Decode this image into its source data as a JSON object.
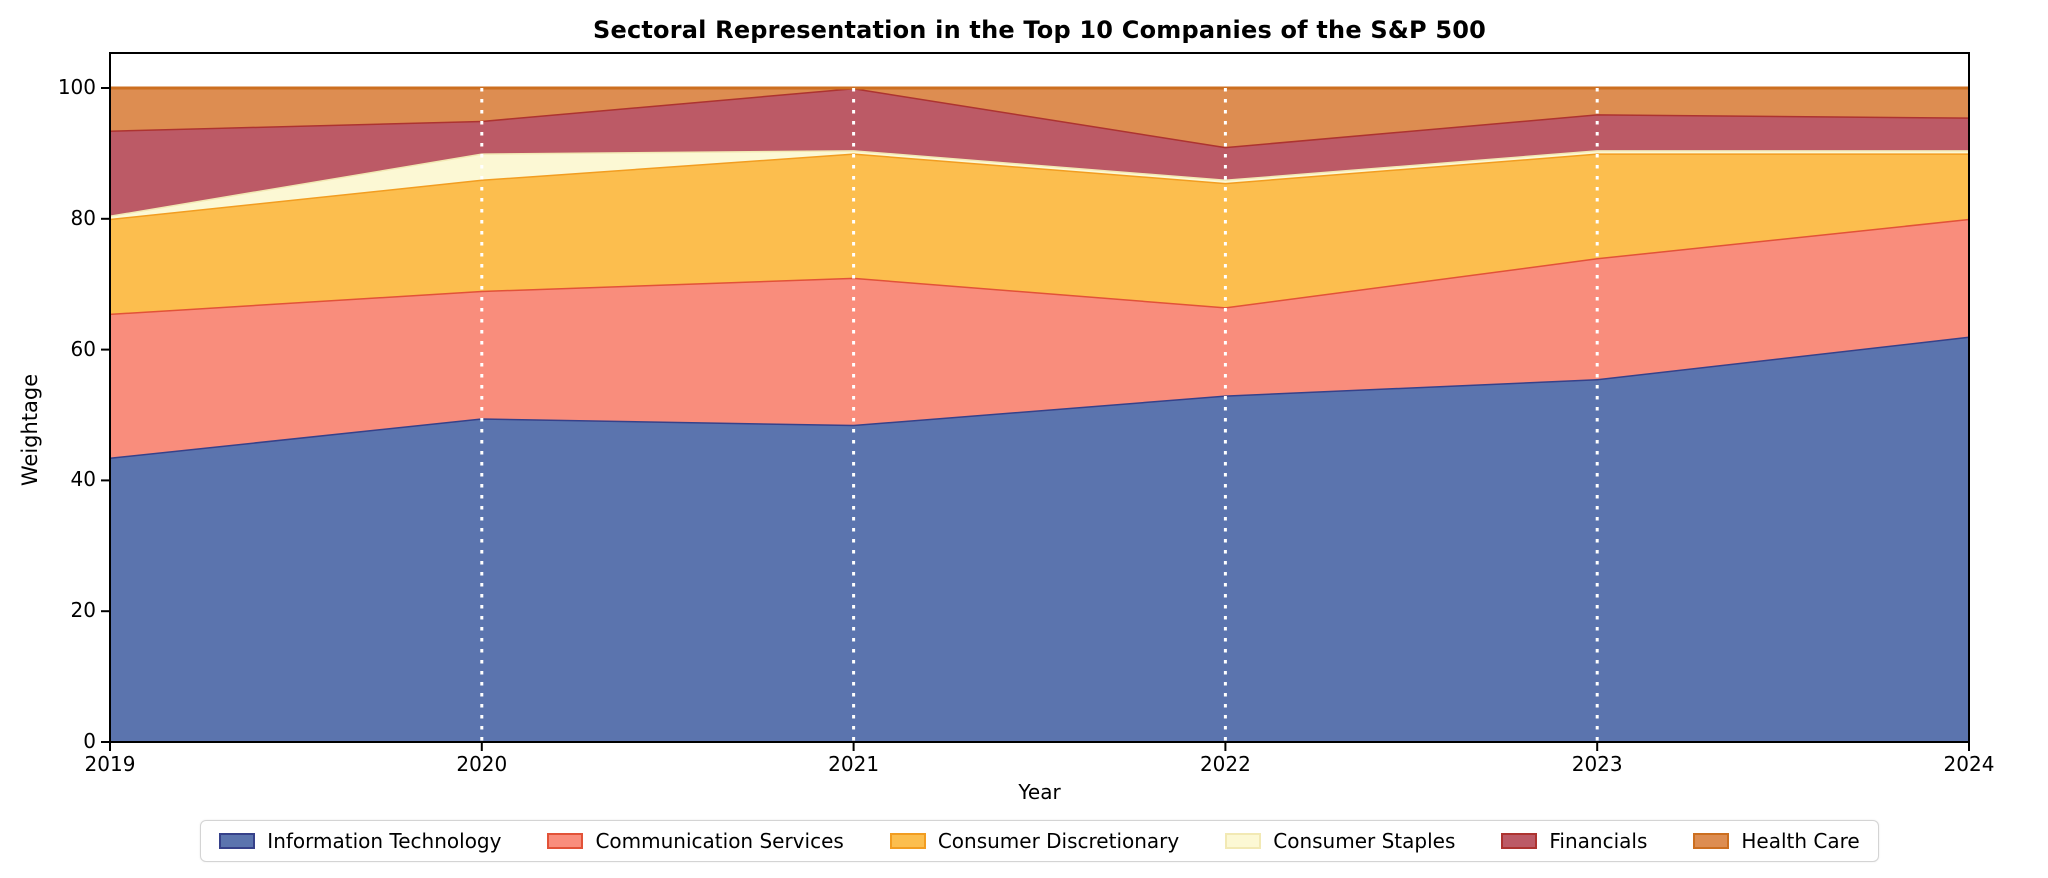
{
  "figure": {
    "title": "Sectoral Representation in the Top 10 Companies of the S&P 500",
    "background_color": "#ffffff",
    "axis_color": "#000000"
  },
  "chart_data": {
    "type": "area",
    "stacked": true,
    "title": "Sectoral Representation in the Top 10 Companies of the S&P 500",
    "xlabel": "Year",
    "ylabel": "Weightage",
    "x": [
      2019,
      2020,
      2021,
      2022,
      2023,
      2024
    ],
    "xtick_labels": [
      "2019",
      "2020",
      "2021",
      "2022",
      "2023",
      "2024"
    ],
    "yticks": [
      0,
      20,
      40,
      60,
      80,
      100
    ],
    "ylim": [
      0,
      100
    ],
    "xlim": [
      2019,
      2024
    ],
    "grid": "white dotted vertical lines at interior years, drawn over the areas from y=100 down to y=0",
    "vline_years": [
      2020,
      2021,
      2022,
      2023
    ],
    "vline_color": "#ffffff",
    "legend_position": "bottom center, horizontal, boxed",
    "series": [
      {
        "name": "Information Technology",
        "values": [
          43.5,
          49.5,
          48.5,
          53.0,
          55.5,
          62.0
        ],
        "fill": "#5b74ae",
        "edge": "#36418a"
      },
      {
        "name": "Communication Services",
        "values": [
          22.0,
          19.5,
          22.5,
          13.5,
          18.5,
          18.0
        ],
        "fill": "#f98d7c",
        "edge": "#e25238"
      },
      {
        "name": "Consumer Discretionary",
        "values": [
          14.5,
          17.0,
          19.0,
          19.0,
          16.0,
          10.0
        ],
        "fill": "#fcbe4e",
        "edge": "#f29d21"
      },
      {
        "name": "Consumer Staples",
        "values": [
          0.5,
          4.0,
          0.5,
          0.5,
          0.5,
          0.5
        ],
        "fill": "#fcf8d4",
        "edge": "#f2e9b4"
      },
      {
        "name": "Financials",
        "values": [
          13.0,
          5.0,
          9.5,
          5.0,
          5.5,
          5.0
        ],
        "fill": "#bc5a66",
        "edge": "#ad3330"
      },
      {
        "name": "Health Care",
        "values": [
          6.5,
          5.0,
          0.0,
          9.0,
          4.0,
          4.5
        ],
        "fill": "#dd8d51",
        "edge": "#cc6f20"
      }
    ]
  }
}
